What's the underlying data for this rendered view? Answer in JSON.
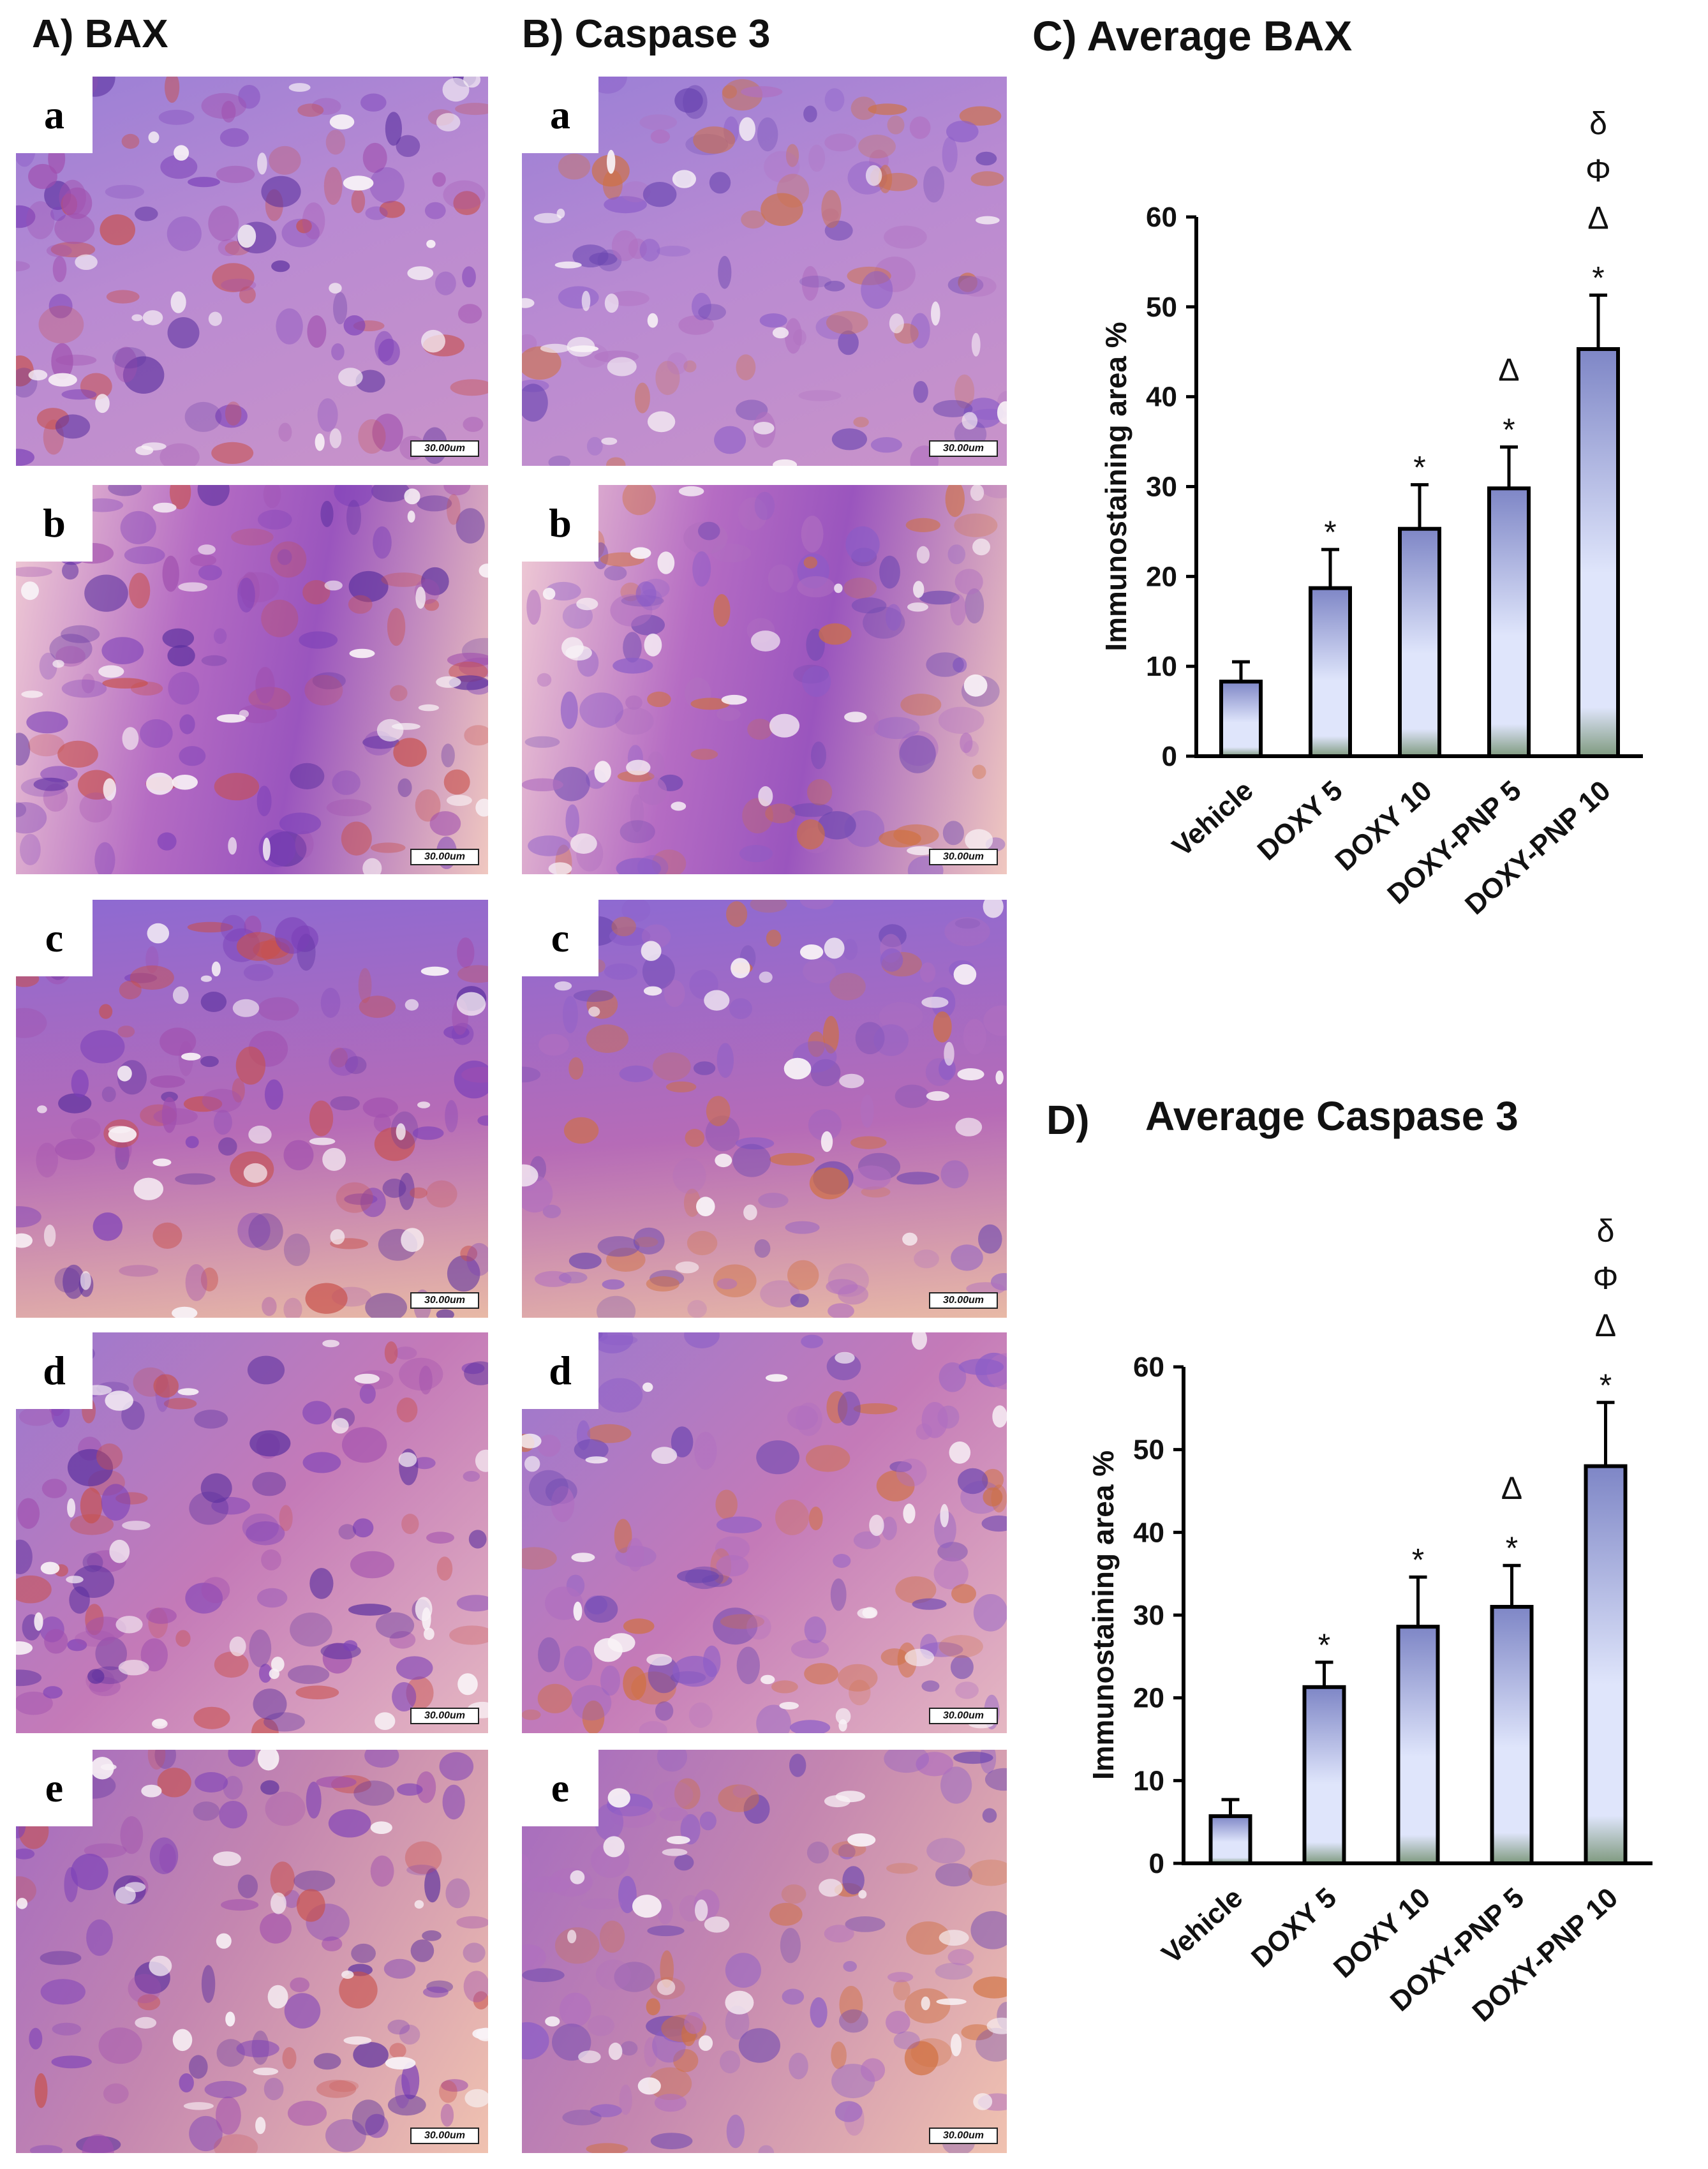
{
  "headings": {
    "bax": "A) BAX",
    "caspase": "B) Caspase 3",
    "avg_bax": "C) Average BAX",
    "avg_caspase_letter": "D)",
    "avg_caspase": "Average Caspase 3"
  },
  "micrographs": {
    "labels": [
      "a",
      "b",
      "c",
      "d",
      "e"
    ],
    "scale_bar": "30.00um"
  },
  "colors": {
    "stain_purple": "#7b3fb8",
    "stain_red": "#c8504a",
    "background_pink": "#e9b9c9",
    "bar_top": "#7e86c6",
    "bar_mid": "#dfe5fb",
    "bar_bottom": "#7f9a7f"
  },
  "chart_data": [
    {
      "type": "bar",
      "title": "C) Average BAX",
      "ylabel": "Immunostaining area %",
      "categories": [
        "Vehicle",
        "DOXY 5",
        "DOXY 10",
        "DOXY-PNP 5",
        "DOXY-PNP 10"
      ],
      "values": [
        8.3,
        18.7,
        25.3,
        29.8,
        45.3
      ],
      "errors": [
        2.2,
        4.3,
        4.9,
        4.6,
        6.0
      ],
      "annotations": [
        [],
        [
          "*"
        ],
        [
          "*"
        ],
        [
          "*",
          "Δ"
        ],
        [
          "*",
          "Δ",
          "Φ",
          "δ"
        ]
      ],
      "ylim": [
        0,
        60
      ],
      "yticks": [
        0,
        10,
        20,
        30,
        40,
        50,
        60
      ]
    },
    {
      "type": "bar",
      "title": "Average Caspase 3",
      "ylabel": "Immunostaining area %",
      "categories": [
        "Vehicle",
        "DOXY 5",
        "DOXY 10",
        "DOXY-PNP 5",
        "DOXY-PNP 10"
      ],
      "values": [
        5.7,
        21.3,
        28.6,
        31.0,
        48.0
      ],
      "errors": [
        2.0,
        3.0,
        6.0,
        5.0,
        7.7
      ],
      "annotations": [
        [],
        [
          "*"
        ],
        [
          "*"
        ],
        [
          "*",
          "Δ"
        ],
        [
          "*",
          "Δ",
          "Φ",
          "δ"
        ]
      ],
      "ylim": [
        0,
        60
      ],
      "yticks": [
        0,
        10,
        20,
        30,
        40,
        50,
        60
      ]
    }
  ]
}
